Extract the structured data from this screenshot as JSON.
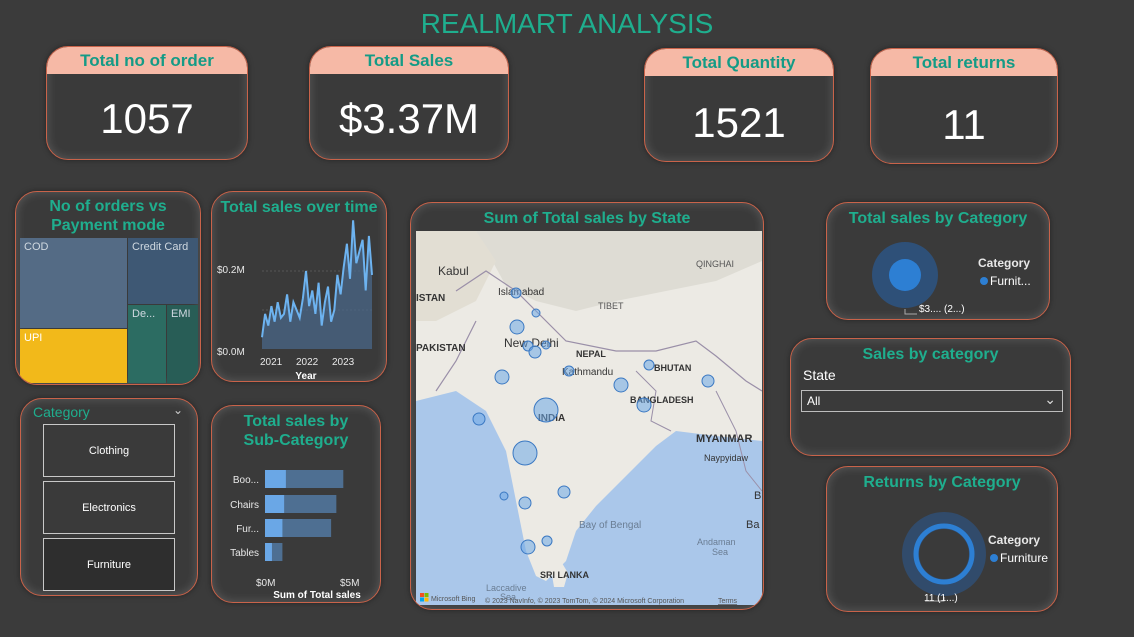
{
  "title": "REALMART ANALYSIS",
  "kpis": [
    {
      "label": "Total no of order",
      "value": "1057"
    },
    {
      "label": "Total Sales",
      "value": "$3.37M"
    },
    {
      "label": "Total Quantity",
      "value": "1521"
    },
    {
      "label": "Total returns",
      "value": "11"
    }
  ],
  "payment_chart": {
    "title_line1": "No of orders vs",
    "title_line2": "Payment mode",
    "cells": [
      "COD",
      "Credit Card",
      "UPI",
      "De...",
      "EMI"
    ],
    "colors": {
      "cod": "#546b85",
      "credit_card": "#3e5874",
      "upi": "#f2b91a",
      "debit": "#2c6c62",
      "emi": "#285d56"
    }
  },
  "sales_over_time": {
    "title": "Total sales over time",
    "xlabel": "Year",
    "yticks": [
      "$0.2M",
      "$0.0M"
    ],
    "xticks": [
      "2021",
      "2022",
      "2023"
    ]
  },
  "map": {
    "title": "Sum of Total sales by State",
    "labels": {
      "kabul": "Kabul",
      "islamabad": "Islamabad",
      "qinghai": "QINGHAI",
      "istan": "ISTAN",
      "tibet": "TIBET",
      "pakistan": "PAKISTAN",
      "newdelhi": "New Delhi",
      "nepal": "NEPAL",
      "bhutan": "BHUTAN",
      "kathmandu": "Kathmandu",
      "india": "INDIA",
      "bangladesh": "BANGLADESH",
      "myanmar": "MYANMAR",
      "naypyidaw": "Naypyidaw",
      "bayofbengal": "Bay of Bengal",
      "andaman1": "Andaman",
      "andaman2": "Sea",
      "srilanka": "SRI LANKA",
      "laccadive1": "Laccadive",
      "laccadive2": "Sea",
      "ba": "Ba",
      "b": "B"
    },
    "bing": "Microsoft Bing",
    "credit": "© 2023 NavInfo, © 2023 TomTom, © 2024 Microsoft Corporation",
    "terms": "Terms"
  },
  "category_donut": {
    "title": "Total sales by Category",
    "legend_title": "Category",
    "legend_item": "Furnit...",
    "data_label": "$3.... (2...)"
  },
  "category_slicer": {
    "title": "Category",
    "options": [
      "Clothing",
      "Electronics",
      "Furniture"
    ]
  },
  "subcategory_chart": {
    "title_line1": "Total sales by",
    "title_line2": "Sub-Category",
    "xlabel": "Sum of Total sales",
    "xticks": [
      "$0M",
      "$5M"
    ],
    "xlim": [
      0,
      5
    ],
    "categories": [
      "Boo...",
      "Chairs",
      "Fur...",
      "Tables"
    ]
  },
  "sales_by_category_card": {
    "title": "Sales by category",
    "state_label": "State",
    "dropdown_value": "All"
  },
  "returns_donut": {
    "title": "Returns by Category",
    "legend_title": "Category",
    "legend_item": "Furniture",
    "data_label": "11 (1...)"
  },
  "chart_data": [
    {
      "type": "area",
      "title": "Total sales over time",
      "xlabel": "Year",
      "ylabel": "",
      "ylim": [
        0,
        0.3
      ],
      "x": [
        "2020-12",
        "2021-01",
        "2021-02",
        "2021-03",
        "2021-04",
        "2021-05",
        "2021-06",
        "2021-07",
        "2021-08",
        "2021-09",
        "2021-10",
        "2021-11",
        "2021-12",
        "2022-01",
        "2022-02",
        "2022-03",
        "2022-04",
        "2022-05",
        "2022-06",
        "2022-07",
        "2022-08",
        "2022-09",
        "2022-10",
        "2022-11",
        "2022-12",
        "2023-01",
        "2023-02",
        "2023-03",
        "2023-04",
        "2023-05",
        "2023-06",
        "2023-07",
        "2023-08",
        "2023-09",
        "2023-10",
        "2023-11"
      ],
      "values": [
        0.03,
        0.09,
        0.06,
        0.11,
        0.07,
        0.12,
        0.08,
        0.09,
        0.14,
        0.07,
        0.12,
        0.1,
        0.08,
        0.13,
        0.2,
        0.11,
        0.15,
        0.09,
        0.17,
        0.06,
        0.12,
        0.16,
        0.07,
        0.1,
        0.19,
        0.14,
        0.21,
        0.27,
        0.18,
        0.33,
        0.22,
        0.25,
        0.28,
        0.15,
        0.29,
        0.19
      ]
    },
    {
      "type": "bar",
      "orientation": "horizontal",
      "title": "Total sales by Sub-Category",
      "xlabel": "Sum of Total sales",
      "xlim": [
        0,
        5
      ],
      "categories": [
        "Boo...",
        "Chairs",
        "Fur...",
        "Tables"
      ],
      "series": [
        {
          "values": [
            4.5,
            4.1,
            3.8,
            1.0
          ]
        }
      ],
      "highlight_values": [
        1.2,
        1.1,
        1.0,
        0.4
      ]
    },
    {
      "type": "pie",
      "title": "Total sales by Category",
      "categories": [
        "Furnit..."
      ],
      "values": [
        3.37
      ]
    },
    {
      "type": "pie",
      "title": "Returns by Category",
      "categories": [
        "Furniture"
      ],
      "values": [
        11
      ]
    }
  ]
}
